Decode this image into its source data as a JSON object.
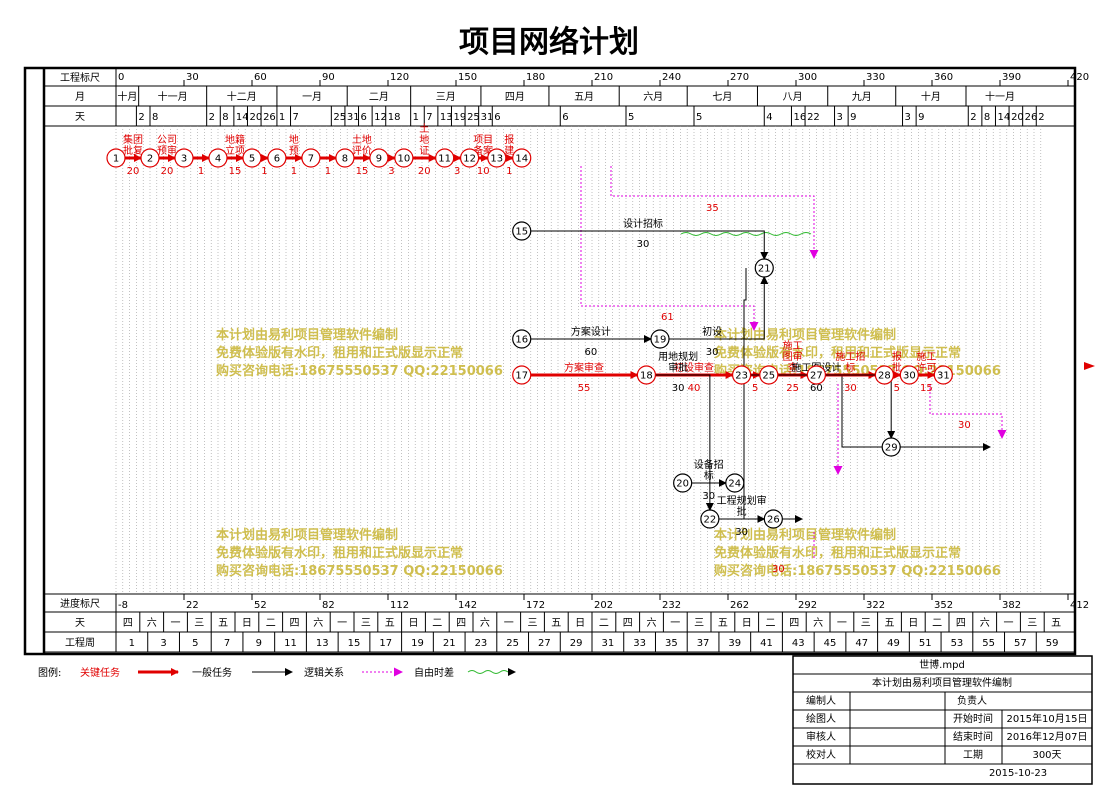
{
  "title": "项目网络计划",
  "top_scale": {
    "ruler_label": "工程标尺",
    "month_label": "月",
    "day_label": "天",
    "ruler": [
      [
        "0",
        0
      ],
      [
        "30",
        30
      ],
      [
        "60",
        60
      ],
      [
        "90",
        90
      ],
      [
        "120",
        120
      ],
      [
        "150",
        150
      ],
      [
        "180",
        180
      ],
      [
        "210",
        210
      ],
      [
        "240",
        240
      ],
      [
        "270",
        270
      ],
      [
        "300",
        300
      ],
      [
        "330",
        330
      ],
      [
        "360",
        360
      ],
      [
        "390",
        390
      ],
      [
        "420",
        420
      ]
    ],
    "months": [
      [
        "十月",
        0,
        10
      ],
      [
        "十一月",
        10,
        40
      ],
      [
        "十二月",
        40,
        71
      ],
      [
        "一月",
        71,
        102
      ],
      [
        "二月",
        102,
        130
      ],
      [
        "三月",
        130,
        161
      ],
      [
        "四月",
        161,
        191
      ],
      [
        "五月",
        191,
        222
      ],
      [
        "六月",
        222,
        252
      ],
      [
        "七月",
        252,
        283
      ],
      [
        "八月",
        283,
        314
      ],
      [
        "九月",
        314,
        344
      ],
      [
        "十月",
        344,
        375
      ],
      [
        "十一月",
        375,
        405
      ]
    ],
    "days": [
      [
        "2",
        9
      ],
      [
        "8",
        15
      ],
      [
        "2",
        40
      ],
      [
        "8",
        46
      ],
      [
        "14",
        52
      ],
      [
        "20",
        58
      ],
      [
        "26",
        64
      ],
      [
        "1",
        71
      ],
      [
        "7",
        77
      ],
      [
        "25",
        95
      ],
      [
        "31",
        101
      ],
      [
        "6",
        107
      ],
      [
        "12",
        113
      ],
      [
        "18",
        119
      ],
      [
        "1",
        130
      ],
      [
        "7",
        136
      ],
      [
        "13",
        142
      ],
      [
        "19",
        148
      ],
      [
        "25",
        154
      ],
      [
        "31",
        160
      ],
      [
        "6",
        166
      ],
      [
        "6",
        196
      ],
      [
        "5",
        225
      ],
      [
        "5",
        255
      ],
      [
        "4",
        286
      ],
      [
        "16",
        298
      ],
      [
        "22",
        304
      ],
      [
        "3",
        317
      ],
      [
        "9",
        323
      ],
      [
        "3",
        347
      ],
      [
        "9",
        353
      ],
      [
        "2",
        376
      ],
      [
        "8",
        382
      ],
      [
        "14",
        388
      ],
      [
        "20",
        394
      ],
      [
        "26",
        400
      ],
      [
        "2",
        406
      ]
    ]
  },
  "bottom_scale": {
    "ruler_label": "进度标尺",
    "day_label": "天",
    "week_label": "工程周",
    "ruler": [
      [
        "-8",
        0
      ],
      [
        "22",
        30
      ],
      [
        "52",
        60
      ],
      [
        "82",
        90
      ],
      [
        "112",
        120
      ],
      [
        "142",
        150
      ],
      [
        "172",
        180
      ],
      [
        "202",
        210
      ],
      [
        "232",
        240
      ],
      [
        "262",
        270
      ],
      [
        "292",
        300
      ],
      [
        "322",
        330
      ],
      [
        "352",
        360
      ],
      [
        "382",
        390
      ],
      [
        "412",
        420
      ]
    ],
    "weekdays": [
      "四",
      "六",
      "一",
      "三",
      "五",
      "日",
      "二",
      "四",
      "六",
      "一",
      "三",
      "五",
      "日",
      "二",
      "四",
      "六",
      "一",
      "三",
      "五",
      "日",
      "二",
      "四",
      "六",
      "一",
      "三",
      "五",
      "日",
      "二",
      "四",
      "六",
      "一",
      "三",
      "五",
      "日",
      "二",
      "四",
      "六",
      "一",
      "三",
      "五"
    ],
    "weeks": [
      "1",
      "3",
      "5",
      "7",
      "9",
      "11",
      "13",
      "15",
      "17",
      "19",
      "21",
      "23",
      "25",
      "27",
      "29",
      "31",
      "33",
      "35",
      "37",
      "39",
      "41",
      "43",
      "45",
      "47",
      "49",
      "51",
      "53",
      "55",
      "57",
      "59"
    ]
  },
  "nodes": [
    {
      "id": "1",
      "d": 0,
      "r": 158
    },
    {
      "id": "2",
      "d": 15,
      "r": 158
    },
    {
      "id": "3",
      "d": 30,
      "r": 158
    },
    {
      "id": "4",
      "d": 45,
      "r": 158
    },
    {
      "id": "5",
      "d": 60,
      "r": 158
    },
    {
      "id": "6",
      "d": 71,
      "r": 158
    },
    {
      "id": "7",
      "d": 86,
      "r": 158
    },
    {
      "id": "8",
      "d": 101,
      "r": 158
    },
    {
      "id": "9",
      "d": 116,
      "r": 158
    },
    {
      "id": "10",
      "d": 127,
      "r": 158
    },
    {
      "id": "11",
      "d": 145,
      "r": 158
    },
    {
      "id": "12",
      "d": 156,
      "r": 158
    },
    {
      "id": "13",
      "d": 168,
      "r": 158
    },
    {
      "id": "14",
      "d": 179,
      "r": 158
    },
    {
      "id": "15",
      "d": 179,
      "r": 231
    },
    {
      "id": "21",
      "d": 286,
      "r": 268
    },
    {
      "id": "16",
      "d": 179,
      "r": 339
    },
    {
      "id": "19",
      "d": 240,
      "r": 339
    },
    {
      "id": "17",
      "d": 179,
      "r": 375
    },
    {
      "id": "18",
      "d": 234,
      "r": 375
    },
    {
      "id": "23",
      "d": 276,
      "r": 375
    },
    {
      "id": "25",
      "d": 288,
      "r": 375
    },
    {
      "id": "27",
      "d": 309,
      "r": 375
    },
    {
      "id": "28",
      "d": 339,
      "r": 375
    },
    {
      "id": "30",
      "d": 350,
      "r": 375
    },
    {
      "id": "31",
      "d": 365,
      "r": 375
    },
    {
      "id": "29",
      "d": 342,
      "r": 447
    },
    {
      "id": "20",
      "d": 250,
      "r": 483
    },
    {
      "id": "24",
      "d": 273,
      "r": 483
    },
    {
      "id": "22",
      "d": 262,
      "r": 519
    },
    {
      "id": "26",
      "d": 290,
      "r": 519
    }
  ],
  "tasks": [
    {
      "from": "1",
      "to": "2",
      "name": "集团\n批复",
      "dur": "20",
      "type": "critical"
    },
    {
      "from": "2",
      "to": "3",
      "name": "公司\n预审",
      "dur": "20",
      "type": "critical"
    },
    {
      "from": "3",
      "to": "4",
      "name": "",
      "dur": "1",
      "type": "critical"
    },
    {
      "from": "4",
      "to": "5",
      "name": "地籍\n立项",
      "dur": "15",
      "type": "critical"
    },
    {
      "from": "5",
      "to": "6",
      "name": "",
      "dur": "1",
      "type": "critical"
    },
    {
      "from": "6",
      "to": "7",
      "name": "地\n预",
      "dur": "1",
      "type": "critical"
    },
    {
      "from": "7",
      "to": "8",
      "name": "",
      "dur": "1",
      "type": "critical"
    },
    {
      "from": "8",
      "to": "9",
      "name": "土地\n评价",
      "dur": "15",
      "type": "critical"
    },
    {
      "from": "9",
      "to": "10",
      "name": "",
      "dur": "3",
      "type": "critical"
    },
    {
      "from": "10",
      "to": "11",
      "name": "土\n地\n证",
      "dur": "20",
      "type": "critical"
    },
    {
      "from": "11",
      "to": "12",
      "name": "",
      "dur": "3",
      "type": "critical"
    },
    {
      "from": "12",
      "to": "13",
      "name": "项目\n备案",
      "dur": "10",
      "type": "critical"
    },
    {
      "from": "13",
      "to": "14",
      "name": "报\n建",
      "dur": "1",
      "type": "critical"
    },
    {
      "from": "17",
      "to": "18",
      "name": "方案审查",
      "dur": "55",
      "type": "critical"
    },
    {
      "from": "18",
      "to": "23",
      "name": "初设审查",
      "dur": "40",
      "type": "critical"
    },
    {
      "from": "23",
      "to": "25",
      "name": "",
      "dur": "5",
      "type": "critical"
    },
    {
      "from": "25",
      "to": "27",
      "name": "施工\n图审\n查",
      "dur": "25",
      "type": "critical"
    },
    {
      "from": "27",
      "to": "28",
      "name": "施工招\n标",
      "dur": "30",
      "type": "critical"
    },
    {
      "from": "28",
      "to": "30",
      "name": "报\n批",
      "dur": "5",
      "type": "critical"
    },
    {
      "from": "30",
      "to": "31",
      "name": "施工\n许可",
      "dur": "15",
      "type": "critical"
    },
    {
      "from": "15",
      "to": "21",
      "name": "设计招标",
      "dur": "30",
      "type": "normal"
    },
    {
      "from": "16",
      "to": "19",
      "name": "方案设计",
      "dur": "60",
      "type": "normal"
    },
    {
      "from": "19",
      "to": "21",
      "name": "初设",
      "dur": "30",
      "type": "normal"
    },
    {
      "from": "23",
      "to": "29",
      "name": "施工图设计",
      "dur": "60",
      "type": "normal"
    },
    {
      "from": "20",
      "to": "24",
      "name": "设备招\n标",
      "dur": "30",
      "type": "normal"
    },
    {
      "from": "18",
      "to": "22",
      "name": "用地规划\n审批",
      "dur": "30",
      "type": "normal"
    },
    {
      "from": "22",
      "to": "26",
      "name": "工程规划审\n批",
      "dur": "30",
      "type": "normal"
    }
  ],
  "float_labels": [
    "35",
    "61",
    "30",
    "30"
  ],
  "legend": {
    "label": "图例:",
    "critical": "关键任务",
    "normal": "一般任务",
    "logic": "逻辑关系",
    "free": "自由时差"
  },
  "info": {
    "file": "世博.mpd",
    "note": "本计划由易利项目管理软件编制",
    "rows": [
      [
        "编制人",
        "",
        "负责人",
        ""
      ],
      [
        "绘图人",
        "",
        "开始时间",
        "2015年10月15日"
      ],
      [
        "审核人",
        "",
        "结束时间",
        "2016年12月07日"
      ],
      [
        "校对人",
        "",
        "工期",
        "300天"
      ]
    ],
    "date": "2015-10-23"
  },
  "watermark": [
    "本计划由易利项目管理软件编制",
    "免费体验版有水印，租用和正式版显示正常",
    "购买咨询电话:18675550537 QQ:22150066"
  ]
}
